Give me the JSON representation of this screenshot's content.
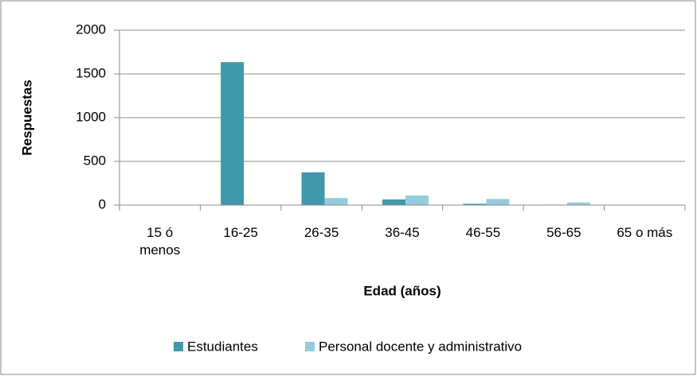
{
  "chart_data": {
    "type": "bar",
    "x_label": "Edad (años)",
    "y_label": "Respuestas",
    "categories": [
      "15 ó menos",
      "16-25",
      "26-35",
      "36-45",
      "46-55",
      "56-65",
      "65 o más"
    ],
    "series": [
      {
        "name": "Estudiantes",
        "color": "#4198aa",
        "values": [
          0,
          1635,
          375,
          65,
          15,
          5,
          0
        ]
      },
      {
        "name": "Personal docente y administrativo",
        "color": "#93cddd",
        "values": [
          0,
          0,
          80,
          110,
          70,
          30,
          5
        ]
      }
    ],
    "ylim": [
      0,
      2000
    ],
    "yticks": [
      0,
      500,
      1000,
      1500,
      2000
    ],
    "grid": true,
    "legend": "bottom"
  }
}
